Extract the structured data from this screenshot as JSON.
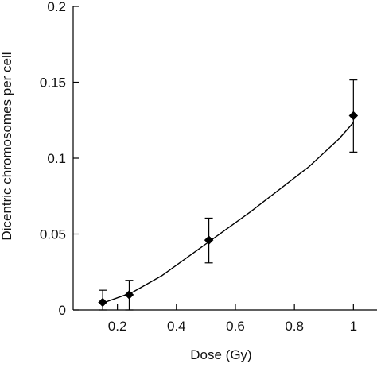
{
  "chart_data": {
    "type": "scatter",
    "title": "",
    "xlabel": "Dose (Gy)",
    "ylabel": "Dicentric chromosomes per cell",
    "xlim": [
      0.05,
      1.08
    ],
    "ylim": [
      0,
      0.2
    ],
    "x_ticks": [
      {
        "value": 0.2,
        "label": "0.2"
      },
      {
        "value": 0.4,
        "label": "0.4"
      },
      {
        "value": 0.6,
        "label": "0.6"
      },
      {
        "value": 0.8,
        "label": "0.8"
      },
      {
        "value": 1.0,
        "label": "1"
      }
    ],
    "y_ticks": [
      {
        "value": 0,
        "label": "0"
      },
      {
        "value": 0.05,
        "label": "0.05"
      },
      {
        "value": 0.1,
        "label": "0.1"
      },
      {
        "value": 0.15,
        "label": "0.15"
      },
      {
        "value": 0.2,
        "label": "0.2"
      }
    ],
    "grid": false,
    "legend": "none",
    "series": [
      {
        "marker": "diamond",
        "color": "#000000",
        "points": [
          {
            "x": 0.15,
            "y": 0.005,
            "err_low": 0.0,
            "err_high": 0.013
          },
          {
            "x": 0.24,
            "y": 0.01,
            "err_low": 0.0,
            "err_high": 0.0195
          },
          {
            "x": 0.51,
            "y": 0.046,
            "err_low": 0.031,
            "err_high": 0.0605
          },
          {
            "x": 1.0,
            "y": 0.128,
            "err_low": 0.104,
            "err_high": 0.1515
          }
        ]
      }
    ],
    "fit": {
      "type": "linear-quadratic",
      "color": "#000000",
      "x": [
        0.15,
        0.25,
        0.35,
        0.45,
        0.55,
        0.65,
        0.75,
        0.85,
        0.95,
        1.0
      ],
      "y": [
        0.0045,
        0.0115,
        0.0225,
        0.0365,
        0.0505,
        0.0645,
        0.0795,
        0.0945,
        0.1125,
        0.1235
      ]
    }
  }
}
